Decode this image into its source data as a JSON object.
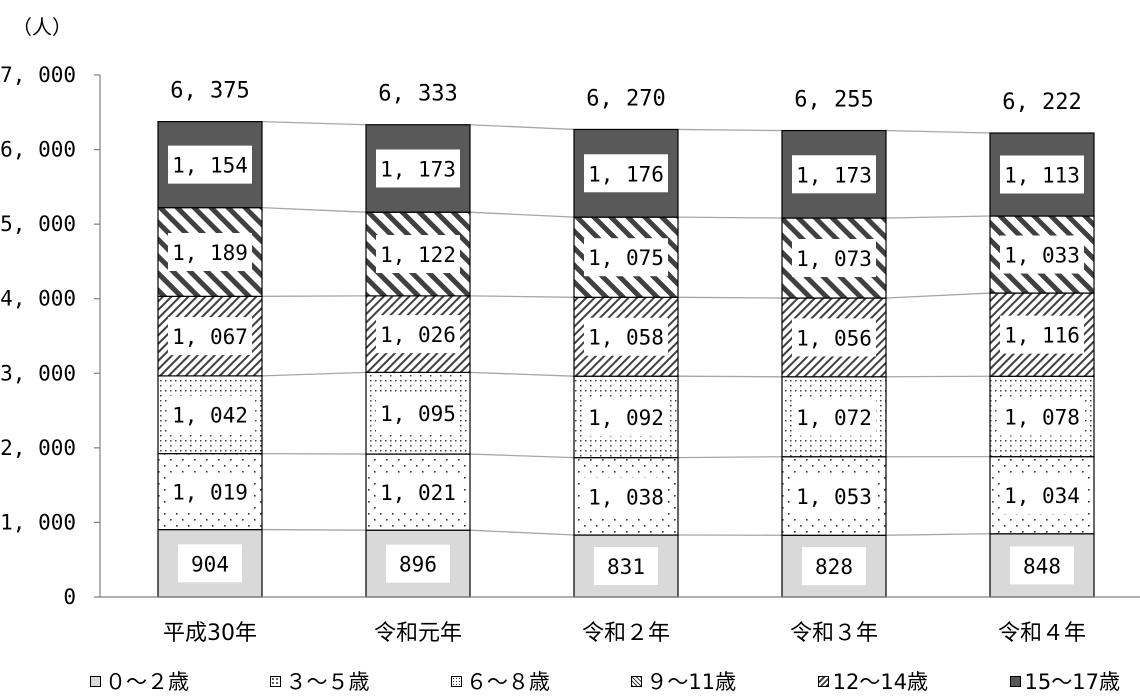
{
  "chart_data": {
    "type": "bar",
    "stacked": true,
    "unit_label": "（人）",
    "categories": [
      "平成30年",
      "令和元年",
      "令和２年",
      "令和３年",
      "令和４年"
    ],
    "totals": [
      "6, 375",
      "6, 333",
      "6, 270",
      "6, 255",
      "6, 222"
    ],
    "ylim": [
      0,
      7000
    ],
    "yticks": [
      "0",
      "1, 000",
      "2, 000",
      "3, 000",
      "4, 000",
      "5, 000",
      "6, 000",
      "7, 000"
    ],
    "grid": false,
    "legend_position": "bottom",
    "series": [
      {
        "name": "０～２歳",
        "values": [
          904,
          896,
          831,
          828,
          848
        ],
        "labels": [
          "904",
          "896",
          "831",
          "828",
          "848"
        ],
        "pattern": "solid-gray",
        "color": "#d9d9d9"
      },
      {
        "name": "３～５歳",
        "values": [
          1019,
          1021,
          1038,
          1053,
          1034
        ],
        "labels": [
          "1, 019",
          "1, 021",
          "1, 038",
          "1, 053",
          "1, 034"
        ],
        "pattern": "sparse-dots"
      },
      {
        "name": "６～８歳",
        "values": [
          1042,
          1095,
          1092,
          1072,
          1078
        ],
        "labels": [
          "1, 042",
          "1, 095",
          "1, 092",
          "1, 072",
          "1, 078"
        ],
        "pattern": "dotted-grid"
      },
      {
        "name": "９～11歳",
        "values": [
          1067,
          1026,
          1058,
          1056,
          1116
        ],
        "labels": [
          "1, 067",
          "1, 026",
          "1, 058",
          "1, 056",
          "1, 116"
        ],
        "pattern": "fine-diagonal"
      },
      {
        "name": "12～14歳",
        "values": [
          1189,
          1122,
          1075,
          1073,
          1033
        ],
        "labels": [
          "1, 189",
          "1, 122",
          "1, 075",
          "1, 073",
          "1, 033"
        ],
        "pattern": "wide-diagonal"
      },
      {
        "name": "15～17歳",
        "values": [
          1154,
          1173,
          1176,
          1173,
          1113
        ],
        "labels": [
          "1, 154",
          "1, 173",
          "1, 176",
          "1, 173",
          "1, 113"
        ],
        "pattern": "solid-dark",
        "color": "#595959"
      }
    ]
  }
}
